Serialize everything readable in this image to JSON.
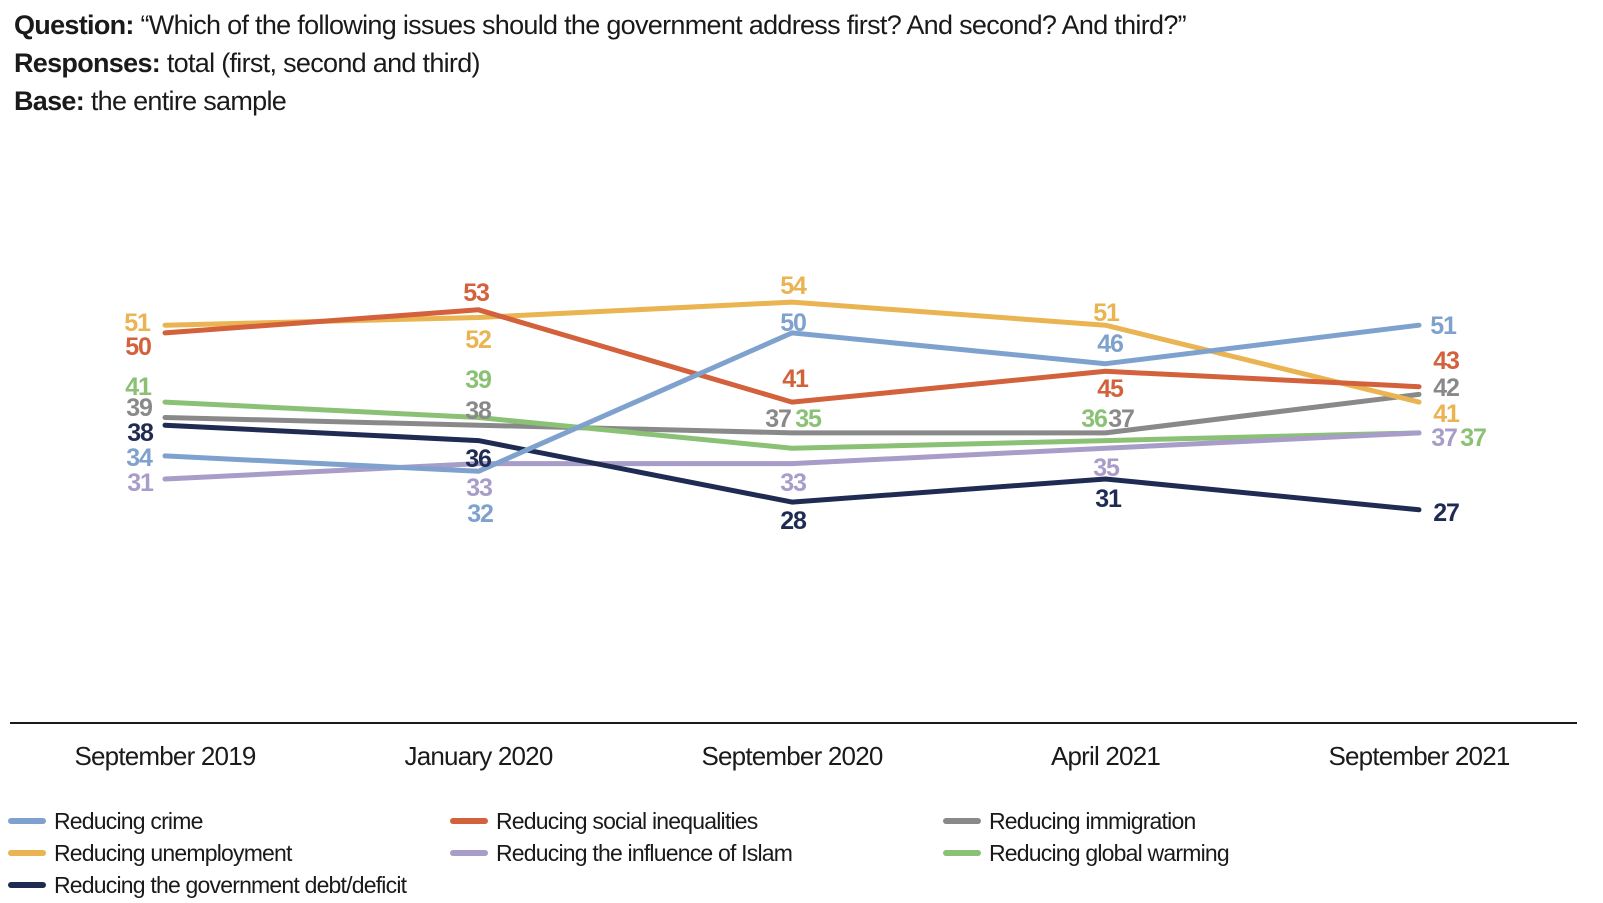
{
  "header": {
    "question_label": "Question:",
    "question_text": "“Which of the following issues should the government address first? And second? And third?”",
    "responses_label": "Responses:",
    "responses_text": "total (first, second and third)",
    "base_label": "Base:",
    "base_text": "the entire sample"
  },
  "chart_data": {
    "type": "line",
    "x_labels": [
      "September 2019",
      "January 2020",
      "September 2020",
      "April 2021",
      "September 2021"
    ],
    "series": [
      {
        "name": "Reducing crime",
        "color": "#7ea2cd",
        "values": [
          34,
          32,
          50,
          46,
          51
        ]
      },
      {
        "name": "Reducing social inequalities",
        "color": "#d2613c",
        "values": [
          50,
          53,
          41,
          45,
          43
        ]
      },
      {
        "name": "Reducing immigration",
        "color": "#898989",
        "values": [
          39,
          38,
          37,
          37,
          42
        ]
      },
      {
        "name": "Reducing unemployment",
        "color": "#e9b451",
        "values": [
          51,
          52,
          54,
          51,
          41
        ]
      },
      {
        "name": "Reducing the influence of Islam",
        "color": "#a89cc8",
        "values": [
          31,
          33,
          33,
          35,
          37
        ]
      },
      {
        "name": "Reducing global warming",
        "color": "#8ac175",
        "values": [
          41,
          39,
          35,
          36,
          37
        ]
      },
      {
        "name": "Reducing the government debt/deficit",
        "color": "#1f2b52",
        "values": [
          38,
          36,
          28,
          31,
          27
        ]
      }
    ],
    "title": "",
    "xlabel": "",
    "ylabel": "",
    "grid": false,
    "legend_position": "bottom",
    "axis_color": "#1a1a1a",
    "value_labels_shown": true
  }
}
